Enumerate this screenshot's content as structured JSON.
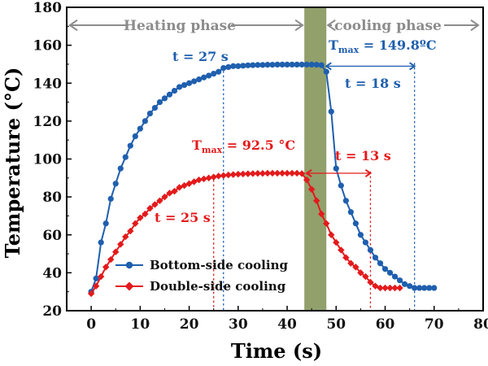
{
  "chart_data": {
    "type": "line",
    "xlabel": "Time (s)",
    "ylabel": "Temperature (°C)",
    "xlim": [
      -5,
      80
    ],
    "ylim": [
      20,
      180
    ],
    "xticks": [
      0,
      10,
      20,
      30,
      40,
      50,
      60,
      70,
      80
    ],
    "yticks": [
      20,
      40,
      60,
      80,
      100,
      120,
      140,
      160,
      180
    ],
    "grid": false,
    "legend_position": "bottom-left",
    "colors": {
      "blue": "#1f5fae",
      "red": "#e31a1c",
      "phase_arrow": "#8c8c8c",
      "shade": "#7f8f52"
    },
    "phases": [
      {
        "label": "Heating phase",
        "from": -5,
        "to": 43.5
      },
      {
        "label": "cooling phase",
        "from": 48,
        "to": 80
      }
    ],
    "shaded_region": {
      "from": 43.5,
      "to": 48
    },
    "series": [
      {
        "name": "Bottom-side cooling",
        "color": "#1f5fae",
        "marker": "circle",
        "x": [
          0,
          1,
          2,
          3,
          4,
          5,
          6,
          7,
          8,
          9,
          10,
          11,
          12,
          13,
          14,
          15,
          16,
          17,
          18,
          19,
          20,
          21,
          22,
          23,
          24,
          25,
          26,
          27,
          28,
          29,
          30,
          31,
          32,
          33,
          34,
          35,
          36,
          37,
          38,
          39,
          40,
          41,
          42,
          43,
          44,
          45,
          46,
          47,
          48,
          49,
          50,
          51,
          52,
          53,
          54,
          55,
          56,
          57,
          58,
          59,
          60,
          61,
          62,
          63,
          64,
          65,
          66,
          67,
          68,
          69,
          70
        ],
        "y": [
          30,
          37,
          56,
          66,
          79,
          87,
          95,
          101,
          107,
          112,
          116,
          120,
          124,
          127,
          130,
          132,
          134,
          136,
          138,
          139,
          140,
          141,
          142,
          143,
          144,
          145,
          146,
          148,
          148.5,
          149,
          149,
          149.2,
          149.4,
          149.5,
          149.6,
          149.6,
          149.7,
          149.7,
          149.8,
          149.8,
          149.8,
          149.8,
          149.8,
          149.8,
          149.8,
          149.8,
          149.7,
          149.5,
          146,
          125,
          95,
          86,
          78,
          72,
          66,
          60,
          56,
          52,
          48,
          45,
          42,
          40,
          38,
          36,
          34,
          33,
          32,
          32,
          32,
          32,
          32
        ]
      },
      {
        "name": "Double-side cooling",
        "color": "#e31a1c",
        "marker": "diamond",
        "x": [
          0,
          1,
          2,
          3,
          4,
          5,
          6,
          7,
          8,
          9,
          10,
          11,
          12,
          13,
          14,
          15,
          16,
          17,
          18,
          19,
          20,
          21,
          22,
          23,
          24,
          25,
          26,
          27,
          28,
          29,
          30,
          31,
          32,
          33,
          34,
          35,
          36,
          37,
          38,
          39,
          40,
          41,
          42,
          43,
          44,
          45,
          46,
          47,
          48,
          49,
          50,
          51,
          52,
          53,
          54,
          55,
          56,
          57,
          58,
          59,
          60,
          61,
          62,
          63
        ],
        "y": [
          29,
          33,
          38,
          43,
          47,
          51,
          55,
          59,
          62,
          66,
          69,
          71,
          74,
          76,
          78,
          80,
          82,
          83,
          85,
          86,
          87,
          88,
          89,
          89.5,
          90,
          90.5,
          91,
          91.3,
          91.6,
          91.8,
          92,
          92.1,
          92.2,
          92.3,
          92.4,
          92.4,
          92.5,
          92.5,
          92.5,
          92.5,
          92.5,
          92.5,
          92.5,
          92.3,
          89,
          84,
          78,
          71,
          66,
          60,
          56,
          52,
          48,
          45,
          43,
          40,
          38,
          35,
          33,
          32,
          32,
          32,
          32,
          32
        ]
      }
    ],
    "annotations": {
      "blue_peak_time": "t = 27 s",
      "blue_tmax_main": "T",
      "blue_tmax_sub": "max",
      "blue_tmax_value": " = 149.8ºC",
      "blue_cool_time": "t = 18 s",
      "red_tmax_main": "T",
      "red_tmax_sub": "max",
      "red_tmax_value": " = 92.5 °C",
      "red_cool_time": "t = 13 s",
      "red_peak_time": "t = 25 s"
    },
    "legend": [
      "Bottom-side cooling",
      "Double-side cooling"
    ]
  }
}
